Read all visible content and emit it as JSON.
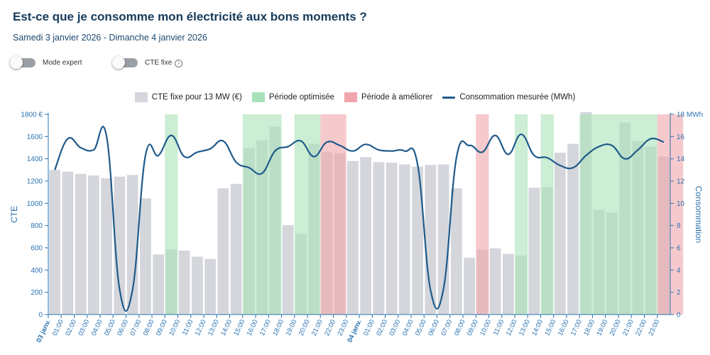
{
  "header": {
    "title": "Est-ce que je consomme mon électricité aux bons moments ?",
    "subtitle": "Samedi 3 janvier 2026 - Dimanche 4 janvier 2026"
  },
  "toggles": {
    "expert_label": "Mode expert",
    "cte_label": "CTE fixe",
    "info_glyph": "i"
  },
  "legend": {
    "bar_label": "CTE fixe pour 13 MW (€)",
    "optimized_label": "Période optimisée",
    "improve_label": "Période à améliorer",
    "line_label": "Consommation mesurée (MWh)"
  },
  "colors": {
    "bar": "#d4d6dc",
    "optimized": "#a8e2b8",
    "improve": "#f0a6ab",
    "line": "#1f5a8b",
    "axis": "#2b73b0"
  },
  "chart_data": {
    "type": "bar",
    "categories": [
      "03 janv.",
      "01:00",
      "02:00",
      "03:00",
      "04:00",
      "05:00",
      "06:00",
      "07:00",
      "08:00",
      "09:00",
      "10:00",
      "11:00",
      "12:00",
      "13:00",
      "14:00",
      "15:00",
      "16:00",
      "17:00",
      "18:00",
      "19:00",
      "20:00",
      "21:00",
      "22:00",
      "23:00",
      "04 janv.",
      "01:00",
      "02:00",
      "03:00",
      "04:00",
      "05:00",
      "06:00",
      "07:00",
      "08:00",
      "09:00",
      "10:00",
      "11:00",
      "12:00",
      "13:00",
      "14:00",
      "15:00",
      "16:00",
      "17:00",
      "18:00",
      "19:00",
      "20:00",
      "21:00",
      "22:00",
      "23:00"
    ],
    "series": [
      {
        "name": "CTE fixe pour 13 MW (€)",
        "axis": "left",
        "values": [
          1300,
          1285,
          1265,
          1250,
          1225,
          1240,
          1255,
          1045,
          540,
          585,
          575,
          520,
          500,
          1135,
          1175,
          1495,
          1565,
          1690,
          805,
          725,
          1535,
          1460,
          1450,
          1380,
          1415,
          1370,
          1365,
          1350,
          1330,
          1345,
          1350,
          1135,
          510,
          585,
          595,
          545,
          530,
          1140,
          1145,
          1455,
          1535,
          1820,
          940,
          915,
          1725,
          1560,
          1510,
          1420
        ]
      },
      {
        "name": "Consommation mesurée (MWh)",
        "axis": "right",
        "values": [
          13,
          15.8,
          15,
          14.8,
          16,
          2.3,
          2.2,
          14.3,
          14.3,
          16.1,
          14.2,
          14.6,
          14.9,
          15.6,
          13.7,
          13.2,
          12.7,
          14.7,
          15.1,
          15.6,
          14.2,
          15.5,
          15.2,
          14.7,
          15.3,
          14.8,
          14.7,
          14.7,
          13.5,
          2.2,
          2.3,
          14.1,
          15.2,
          14.6,
          16.1,
          14.4,
          16.2,
          14.3,
          14.1,
          13.4,
          13.2,
          14.3,
          15.1,
          15.2,
          14,
          14.8,
          15.8,
          15.5
        ]
      }
    ],
    "periods": {
      "optimized": [
        [
          9,
          10
        ],
        [
          15,
          18
        ],
        [
          19,
          21
        ],
        [
          36,
          37
        ],
        [
          38,
          39
        ],
        [
          41,
          47
        ]
      ],
      "improve": [
        [
          21,
          23
        ],
        [
          33,
          34
        ],
        [
          47,
          49
        ]
      ]
    },
    "left_axis": {
      "title": "CTE",
      "unit": "€",
      "ylim": [
        0,
        1800
      ],
      "ticks": [
        0,
        200,
        400,
        600,
        800,
        1000,
        1200,
        1400,
        1600,
        1800
      ],
      "tick_labels": [
        "0",
        "200",
        "400",
        "600",
        "800",
        "1000",
        "1200",
        "1400",
        "1600",
        "1800 €"
      ]
    },
    "right_axis": {
      "title": "Consommation",
      "unit": "MWh",
      "ylim": [
        0,
        18
      ],
      "ticks": [
        0,
        2,
        4,
        6,
        8,
        10,
        12,
        14,
        16,
        18
      ],
      "tick_labels": [
        "0",
        "2",
        "4",
        "6",
        "8",
        "10",
        "12",
        "14",
        "16",
        "18 MWh"
      ]
    },
    "grid": false,
    "legend_position": "top-center"
  }
}
